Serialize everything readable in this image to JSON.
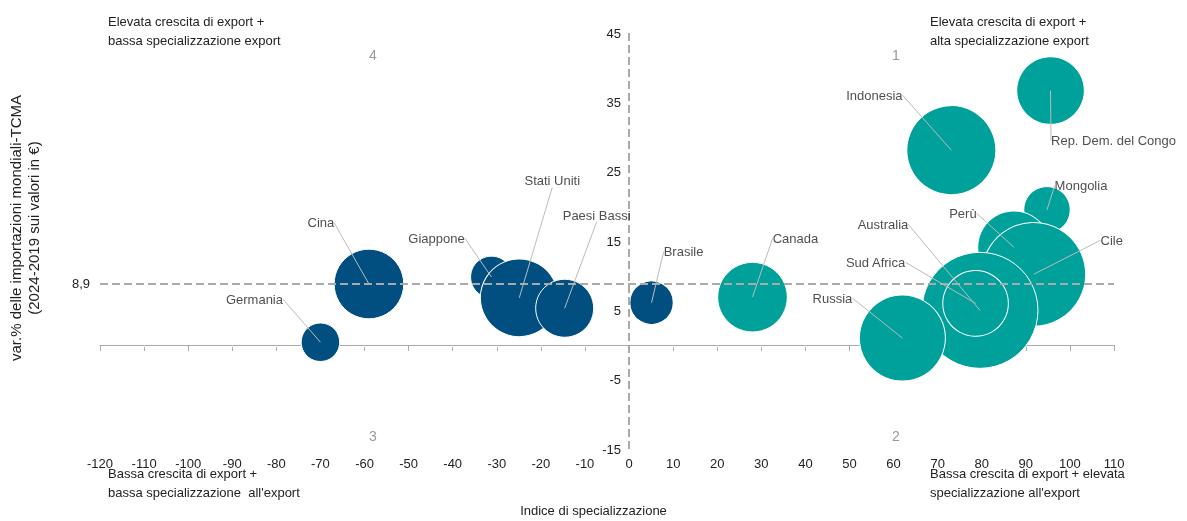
{
  "chart_data": {
    "type": "bubble",
    "xlabel": "Indice di specializzazione",
    "ylabel": "var.% delle importazioni mondiali-TCMA\n(2024-2019 sui valori in €)",
    "xlim": [
      -120,
      110
    ],
    "xticks": [
      -120,
      -110,
      -100,
      -90,
      -80,
      -70,
      -60,
      -50,
      -40,
      -30,
      -20,
      -10,
      0,
      10,
      20,
      30,
      40,
      50,
      60,
      70,
      80,
      90,
      100,
      110
    ],
    "ylim": [
      -15,
      45
    ],
    "yticks": [
      -15,
      -5,
      5,
      15,
      25,
      35,
      45
    ],
    "grid": false,
    "series": [
      {
        "color": "#004f80",
        "x": [
          -70,
          -59,
          -31.2,
          -24.9,
          -14.6,
          5.1
        ],
        "values": [
          0.4,
          8.8,
          9.8,
          6.8,
          5.3,
          6.1
        ],
        "sizes": [
          0.11,
          0.36,
          0.13,
          0.45,
          0.25,
          0.14
        ]
      },
      {
        "color": "#00a19a",
        "x": [
          28,
          73.1,
          95.6,
          94.8,
          87.3,
          91.8,
          79.6,
          78.6,
          62
        ],
        "values": [
          6.9,
          28.1,
          36.7,
          19.5,
          14.1,
          10.2,
          5,
          6,
          1
        ],
        "sizes": [
          0.36,
          0.59,
          0.34,
          0.16,
          0.39,
          0.8,
          1,
          0.32,
          0.55
        ]
      }
    ],
    "ref_lines": [
      {
        "axis": "y",
        "value": 8.9,
        "label": "8,9",
        "color": "#aaaaaa",
        "line_style": "dashed"
      },
      {
        "axis": "x",
        "value": 0,
        "color": "#aaaaaa",
        "line_style": "dashed"
      }
    ],
    "annotations": [
      {
        "text": "Germania",
        "x": -70,
        "y": 0.4
      },
      {
        "text": "Cina",
        "x": -59,
        "y": 8.8
      },
      {
        "text": "Giappone",
        "x": -31.2,
        "y": 9.8
      },
      {
        "text": "Stati Uniti",
        "x": -24.9,
        "y": 6.8
      },
      {
        "text": "Paesi Bassi",
        "x": -14.6,
        "y": 5.3
      },
      {
        "text": "Brasile",
        "x": 5.1,
        "y": 6.1
      },
      {
        "text": "Canada",
        "x": 28,
        "y": 6.9
      },
      {
        "text": "Indonesia",
        "x": 73.1,
        "y": 28.1
      },
      {
        "text": "Rep. Dem. del Congo",
        "x": 95.6,
        "y": 36.7
      },
      {
        "text": "Mongolia",
        "x": 94.8,
        "y": 19.5
      },
      {
        "text": "Perù",
        "x": 87.3,
        "y": 14.1
      },
      {
        "text": "Cile",
        "x": 91.8,
        "y": 10.2
      },
      {
        "text": "Australia",
        "x": 79.6,
        "y": 5
      },
      {
        "text": "Sud Africa",
        "x": 78.6,
        "y": 6
      },
      {
        "text": "Russia",
        "x": 62,
        "y": 1
      },
      "Elevata crescita di export +\nbassa specializzazione export",
      "Elevata crescita di export +\nalta specializzazione export",
      "Bassa crescita di export +\nbassa specializzazione  all'export",
      "Bassa crescita di export + elevata\nspecializzazione all'export",
      "4",
      "1",
      "3",
      "2"
    ]
  }
}
